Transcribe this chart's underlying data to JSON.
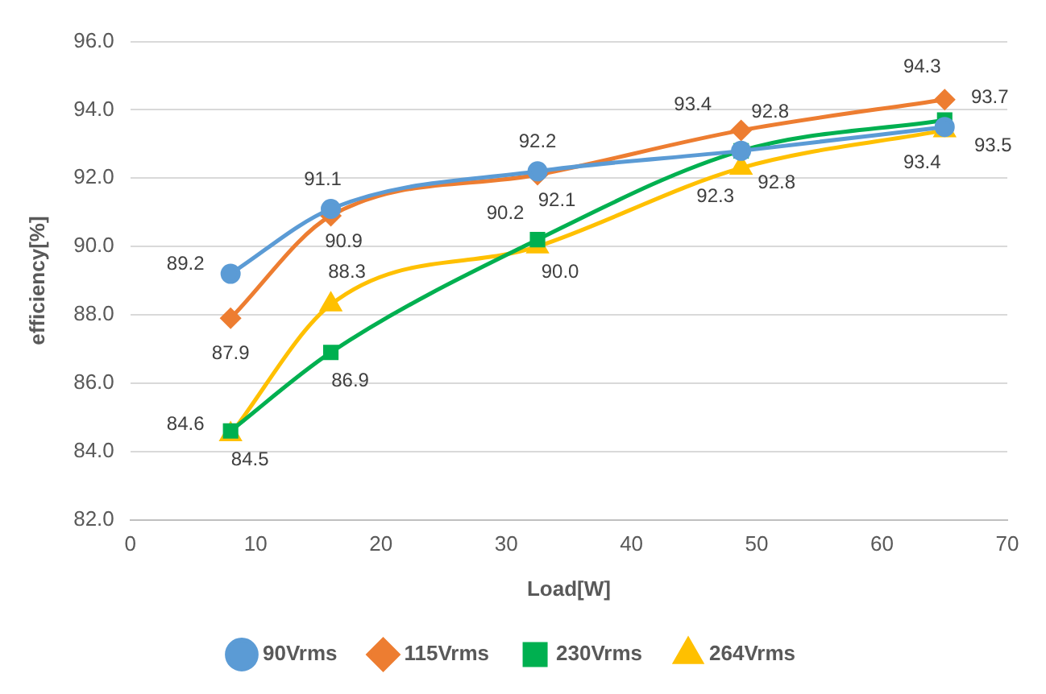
{
  "chart_data": {
    "type": "line",
    "xlabel": "Load[W]",
    "ylabel": "efficiency[%]",
    "xlim": [
      0,
      70
    ],
    "xticks": [
      0,
      10,
      20,
      30,
      40,
      50,
      60,
      70
    ],
    "ylim": [
      82,
      96
    ],
    "yticks": [
      {
        "value": 82,
        "label": "82.0"
      },
      {
        "value": 84,
        "label": "84.0"
      },
      {
        "value": 86,
        "label": "86.0"
      },
      {
        "value": 88,
        "label": "88.0"
      },
      {
        "value": 90,
        "label": "90.0"
      },
      {
        "value": 92,
        "label": "92.0"
      },
      {
        "value": 94,
        "label": "94.0"
      },
      {
        "value": 96,
        "label": "96.0"
      }
    ],
    "x": [
      8,
      16,
      32.5,
      48.75,
      65
    ],
    "series": [
      {
        "name": "90Vrms",
        "color": "#5b9bd5",
        "marker": "circle",
        "values": [
          89.2,
          91.1,
          92.2,
          92.8,
          93.5
        ],
        "value_labels": [
          "89.2",
          "91.1",
          "92.2",
          "92.8",
          "93.5"
        ]
      },
      {
        "name": "115Vrms",
        "color": "#ed7d31",
        "marker": "diamond",
        "values": [
          87.9,
          90.9,
          92.1,
          93.4,
          94.3
        ],
        "value_labels": [
          "87.9",
          "90.9",
          "92.1",
          "93.4",
          "94.3"
        ]
      },
      {
        "name": "230Vrms",
        "color": "#00b050",
        "marker": "square",
        "values": [
          84.6,
          86.9,
          90.2,
          92.8,
          93.7
        ],
        "value_labels": [
          "84.6",
          "86.9",
          "90.2",
          "92.8",
          "93.7"
        ]
      },
      {
        "name": "264Vrms",
        "color": "#ffc000",
        "marker": "triangle",
        "values": [
          84.5,
          88.3,
          90.0,
          92.3,
          93.4
        ],
        "value_labels": [
          "84.5",
          "88.3",
          "90.0",
          "92.3",
          "93.4"
        ]
      }
    ],
    "grid": "y",
    "legend": "bottom",
    "line_style": "solid"
  }
}
